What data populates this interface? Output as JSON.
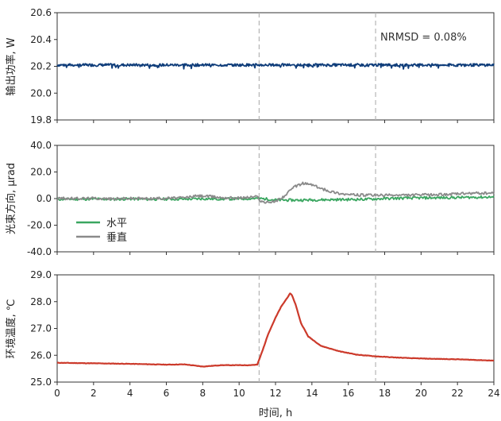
{
  "xlabel": "时间, h",
  "x_ticks": [
    0,
    2,
    4,
    6,
    8,
    10,
    12,
    14,
    16,
    18,
    20,
    22,
    24
  ],
  "event_lines_h": [
    11.1,
    17.5
  ],
  "chart_data": [
    {
      "type": "line",
      "panel": "top",
      "ylabel": "输出功率, W",
      "xlim": [
        0,
        24
      ],
      "ylim": [
        19.8,
        20.6
      ],
      "y_ticks": [
        "20.6",
        "20.4",
        "20.2",
        "20.0",
        "19.8"
      ],
      "grid": false,
      "annotation": "NRMSD = 0.08%",
      "series": [
        {
          "color": "#0f3d7a",
          "x": [
            0,
            0.5,
            1,
            1.5,
            2,
            2.5,
            3,
            3.5,
            4,
            4.5,
            5,
            5.5,
            6,
            6.5,
            7,
            7.5,
            8,
            8.5,
            9,
            9.5,
            10,
            10.5,
            11,
            11.5,
            12,
            12.5,
            13,
            13.5,
            14,
            14.5,
            15,
            15.5,
            16,
            16.5,
            17,
            17.5,
            18,
            18.5,
            19,
            19.5,
            20,
            20.5,
            21,
            21.5,
            22,
            22.5,
            23,
            23.5,
            24
          ],
          "values": [
            20.21,
            20.21,
            20.21,
            20.21,
            20.21,
            20.21,
            20.21,
            20.21,
            20.21,
            20.21,
            20.21,
            20.21,
            20.21,
            20.21,
            20.21,
            20.21,
            20.21,
            20.21,
            20.21,
            20.21,
            20.21,
            20.21,
            20.21,
            20.21,
            20.21,
            20.21,
            20.21,
            20.21,
            20.21,
            20.21,
            20.21,
            20.21,
            20.21,
            20.21,
            20.21,
            20.21,
            20.21,
            20.21,
            20.21,
            20.21,
            20.21,
            20.21,
            20.21,
            20.21,
            20.21,
            20.21,
            20.21,
            20.21,
            20.21
          ],
          "noise_amplitude": 0.02
        }
      ]
    },
    {
      "type": "line",
      "panel": "middle",
      "ylabel": "光束方向, μrad",
      "xlim": [
        0,
        24
      ],
      "ylim": [
        -40,
        40
      ],
      "y_ticks": [
        "40.0",
        "20.0",
        "0.0",
        "-20.0",
        "-40.0"
      ],
      "grid": false,
      "legend": "lower-left",
      "series": [
        {
          "name": "水平",
          "color": "#3aa660",
          "x": [
            0,
            1,
            2,
            3,
            4,
            5,
            6,
            7,
            8,
            9,
            10,
            11,
            11.5,
            12,
            13,
            14,
            15,
            16,
            17,
            18,
            19,
            20,
            21,
            22,
            23,
            24
          ],
          "values": [
            -0.5,
            -0.4,
            -0.3,
            -0.5,
            -0.2,
            -0.5,
            -0.3,
            -0.4,
            -0.1,
            -0.3,
            -0.2,
            0.2,
            -0.3,
            -1.0,
            -1.2,
            -1.0,
            -0.8,
            -0.7,
            -0.5,
            0.0,
            0.3,
            0.5,
            0.6,
            0.8,
            1.0,
            1.2
          ]
        },
        {
          "name": "垂直",
          "color": "#8a8a8a",
          "x": [
            0,
            1,
            2,
            3,
            4,
            5,
            6,
            7,
            7.5,
            8,
            8.5,
            9,
            10,
            11,
            11.2,
            11.5,
            12,
            12.5,
            13,
            13.5,
            14,
            14.5,
            15,
            15.5,
            16,
            17,
            18,
            19,
            20,
            21,
            22,
            23,
            24
          ],
          "values": [
            0.2,
            0.0,
            0.3,
            -0.2,
            0.2,
            0.0,
            0.3,
            0.6,
            1.8,
            2.0,
            1.5,
            0.8,
            0.5,
            1.5,
            -2.0,
            -3.0,
            -2.0,
            2.0,
            8.5,
            11.5,
            10.5,
            7.5,
            5.5,
            4.0,
            3.0,
            2.5,
            2.5,
            2.5,
            2.8,
            3.0,
            3.5,
            4.0,
            4.0
          ]
        }
      ]
    },
    {
      "type": "line",
      "panel": "bottom",
      "ylabel": "环境温度, ℃",
      "xlabel": "时间, h",
      "xlim": [
        0,
        24
      ],
      "ylim": [
        25.0,
        29.0
      ],
      "y_ticks": [
        "29.0",
        "28.0",
        "27.0",
        "26.0",
        "25.0"
      ],
      "x_ticks": [
        "0",
        "2",
        "4",
        "6",
        "8",
        "10",
        "12",
        "14",
        "16",
        "18",
        "20",
        "22",
        "24"
      ],
      "grid": false,
      "series": [
        {
          "color": "#cc3a2b",
          "x": [
            0,
            2,
            4,
            6,
            7,
            8,
            9,
            10,
            10.5,
            11.0,
            11.3,
            11.6,
            12.0,
            12.3,
            12.6,
            12.8,
            12.9,
            13.1,
            13.4,
            13.8,
            14.5,
            15.5,
            16.5,
            17.5,
            18.5,
            19.5,
            20.5,
            22,
            24
          ],
          "values": [
            25.72,
            25.7,
            25.68,
            25.65,
            25.66,
            25.58,
            25.63,
            25.63,
            25.63,
            25.65,
            26.2,
            26.8,
            27.4,
            27.8,
            28.1,
            28.3,
            28.25,
            27.9,
            27.2,
            26.7,
            26.35,
            26.15,
            26.02,
            25.96,
            25.92,
            25.89,
            25.87,
            25.85,
            25.8
          ]
        }
      ]
    }
  ]
}
